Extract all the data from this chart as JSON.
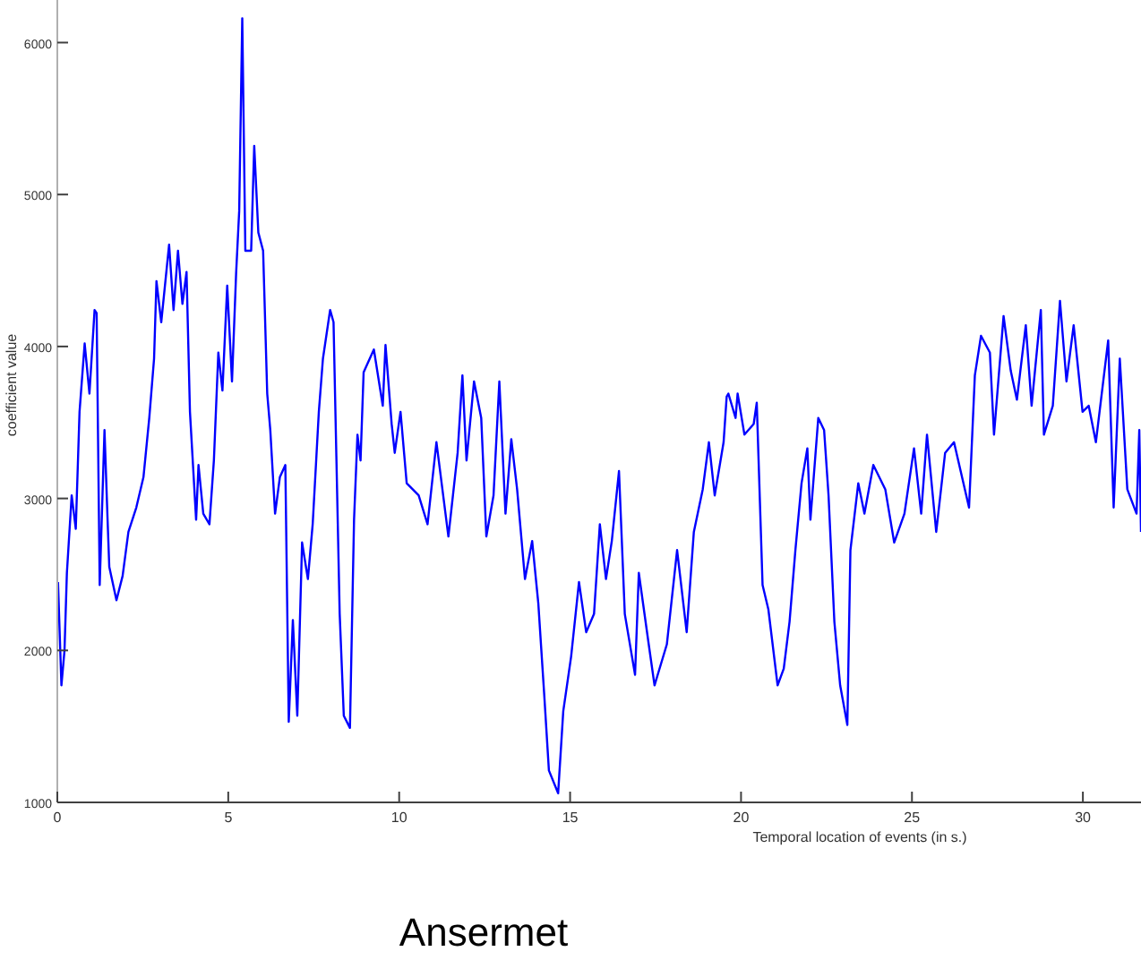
{
  "chart_data": {
    "type": "line",
    "xlabel": "Temporal location of events (in s.)",
    "ylabel": "coefficient value",
    "annotations": [
      "Ansermet"
    ],
    "x": [
      0.02,
      0.12,
      0.21,
      0.28,
      0.42,
      0.54,
      0.65,
      0.8,
      0.94,
      1.09,
      1.15,
      1.24,
      1.38,
      1.47,
      1.52,
      1.73,
      1.91,
      2.08,
      2.31,
      2.52,
      2.69,
      2.83,
      2.9,
      3.04,
      3.27,
      3.4,
      3.53,
      3.66,
      3.78,
      3.88,
      4.06,
      4.13,
      4.27,
      4.45,
      4.58,
      4.71,
      4.83,
      4.97,
      5.11,
      5.23,
      5.32,
      5.41,
      5.5,
      5.67,
      5.76,
      5.88,
      6.02,
      6.14,
      6.23,
      6.37,
      6.51,
      6.67,
      6.77,
      6.89,
      7.02,
      7.16,
      7.33,
      7.47,
      7.65,
      7.77,
      7.98,
      8.08,
      8.26,
      8.38,
      8.56,
      8.68,
      8.78,
      8.87,
      8.96,
      9.08,
      9.26,
      9.52,
      9.6,
      9.78,
      9.87,
      10.04,
      10.22,
      10.57,
      10.83,
      11.09,
      11.44,
      11.71,
      11.85,
      11.97,
      12.19,
      12.4,
      12.55,
      12.76,
      12.93,
      13.11,
      13.28,
      13.45,
      13.68,
      13.89,
      14.07,
      14.24,
      14.38,
      14.65,
      14.8,
      15.03,
      15.26,
      15.47,
      15.7,
      15.87,
      16.05,
      16.22,
      16.43,
      16.6,
      16.9,
      17.01,
      17.3,
      17.47,
      17.83,
      18.13,
      18.41,
      18.62,
      18.88,
      19.06,
      19.23,
      19.49,
      19.58,
      19.63,
      19.84,
      19.9,
      20.1,
      20.37,
      20.46,
      20.63,
      20.8,
      21.07,
      21.25,
      21.42,
      21.59,
      21.77,
      21.94,
      22.03,
      22.26,
      22.43,
      22.56,
      22.73,
      22.9,
      23.11,
      23.2,
      23.43,
      23.61,
      23.87,
      24.22,
      24.48,
      24.78,
      25.06,
      25.27,
      25.44,
      25.71,
      25.97,
      26.23,
      26.67,
      26.84,
      27.02,
      27.28,
      27.4,
      27.68,
      27.89,
      28.07,
      28.33,
      28.5,
      28.77,
      28.86,
      29.12,
      29.33,
      29.52,
      29.73,
      29.99,
      30.17,
      30.38,
      30.74,
      30.9,
      31.08,
      31.3,
      31.57,
      31.65,
      31.7
    ],
    "values": [
      2450,
      1770,
      2000,
      2510,
      3020,
      2800,
      3570,
      4020,
      3690,
      4240,
      4220,
      2430,
      3450,
      2860,
      2550,
      2330,
      2490,
      2780,
      2940,
      3140,
      3530,
      3920,
      4430,
      4160,
      4670,
      4240,
      4630,
      4280,
      4490,
      3570,
      2860,
      3220,
      2900,
      2830,
      3250,
      3960,
      3710,
      4400,
      3770,
      4480,
      4890,
      6160,
      4630,
      4630,
      5320,
      4750,
      4630,
      3690,
      3450,
      2900,
      3140,
      3220,
      1530,
      2200,
      1570,
      2710,
      2470,
      2830,
      3570,
      3920,
      4240,
      4160,
      2240,
      1570,
      1490,
      2860,
      3420,
      3250,
      3830,
      3890,
      3980,
      3610,
      4010,
      3490,
      3300,
      3570,
      3100,
      3020,
      2830,
      3370,
      2750,
      3300,
      3810,
      3250,
      3770,
      3530,
      2750,
      3020,
      3770,
      2900,
      3390,
      3060,
      2470,
      2720,
      2310,
      1720,
      1210,
      1060,
      1600,
      1960,
      2450,
      2120,
      2240,
      2830,
      2470,
      2720,
      3180,
      2240,
      1840,
      2510,
      2040,
      1770,
      2040,
      2660,
      2120,
      2780,
      3060,
      3370,
      3020,
      3370,
      3670,
      3690,
      3530,
      3690,
      3420,
      3490,
      3630,
      2430,
      2270,
      1770,
      1880,
      2190,
      2660,
      3100,
      3330,
      2860,
      3530,
      3450,
      3020,
      2190,
      1770,
      1510,
      2660,
      3100,
      2900,
      3220,
      3060,
      2710,
      2900,
      3330,
      2900,
      3420,
      2780,
      3300,
      3370,
      2940,
      3810,
      4070,
      3960,
      3420,
      4200,
      3840,
      3650,
      4140,
      3610,
      4240,
      3420,
      3610,
      4300,
      3770,
      4140,
      3570,
      3610,
      3370,
      4040,
      2940,
      3920,
      3060,
      2900,
      3450,
      2780
    ],
    "color": "#0000ff",
    "xlim": [
      0,
      31.7
    ],
    "ylim": [
      1000,
      6280
    ],
    "xticks": [
      0,
      5,
      10,
      15,
      20,
      25,
      30
    ],
    "yticks": [
      1000,
      2000,
      3000,
      4000,
      5000,
      6000
    ],
    "marker": "none",
    "line_style": "solid",
    "grid": false
  }
}
